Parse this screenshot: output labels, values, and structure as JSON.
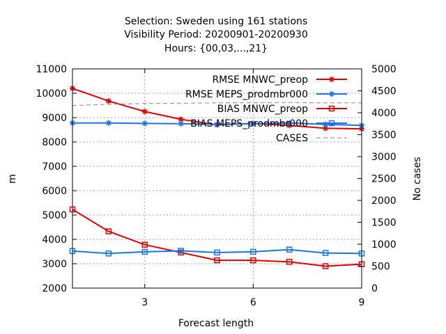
{
  "chart_data": {
    "type": "line",
    "title_lines": [
      "Selection: Sweden using   161 stations",
      "Visibility   Period: 20200901-20200930",
      "Hours: {00,03,...,21}"
    ],
    "xlabel": "Forecast length",
    "ylabel": "m",
    "y2label": "No cases",
    "xlim": [
      1,
      9
    ],
    "ylim": [
      2000,
      11000
    ],
    "y2lim": [
      0,
      5000
    ],
    "x_ticks": [
      3,
      6,
      9
    ],
    "y_ticks": [
      2000,
      3000,
      4000,
      5000,
      6000,
      7000,
      8000,
      9000,
      10000,
      11000
    ],
    "y2_ticks": [
      0,
      500,
      1000,
      1500,
      2000,
      2500,
      3000,
      3500,
      4000,
      4500,
      5000
    ],
    "grid": true,
    "legend_position": "top-right",
    "x": [
      1,
      2,
      3,
      4,
      5,
      6,
      7,
      8,
      9
    ],
    "series": [
      {
        "name": "RMSE MNWC_preop",
        "color": "#e00000",
        "marker": "star",
        "axis": "y",
        "values": [
          10200,
          9680,
          9250,
          8930,
          8700,
          8760,
          8680,
          8560,
          8540
        ]
      },
      {
        "name": "RMSE MEPS_prodmbr000",
        "color": "#1874e8",
        "marker": "star",
        "axis": "y",
        "values": [
          8780,
          8780,
          8760,
          8750,
          8720,
          8750,
          8780,
          8720,
          8680
        ]
      },
      {
        "name": "BIAS MNWC_preop",
        "color": "#e00000",
        "marker": "square",
        "axis": "y",
        "values": [
          5230,
          4330,
          3780,
          3460,
          3140,
          3140,
          3080,
          2900,
          2980
        ]
      },
      {
        "name": "BIAS MEPS_prodmbr000",
        "color": "#1874e8",
        "marker": "square",
        "axis": "y",
        "values": [
          3520,
          3420,
          3490,
          3530,
          3460,
          3490,
          3580,
          3440,
          3420
        ]
      },
      {
        "name": "CASES",
        "color": "#9a9a9a",
        "marker": "none",
        "dashed": true,
        "axis": "y2",
        "values": [
          4165,
          4190,
          4210,
          4215,
          4225,
          4228,
          4232,
          4225,
          4225
        ]
      }
    ]
  }
}
